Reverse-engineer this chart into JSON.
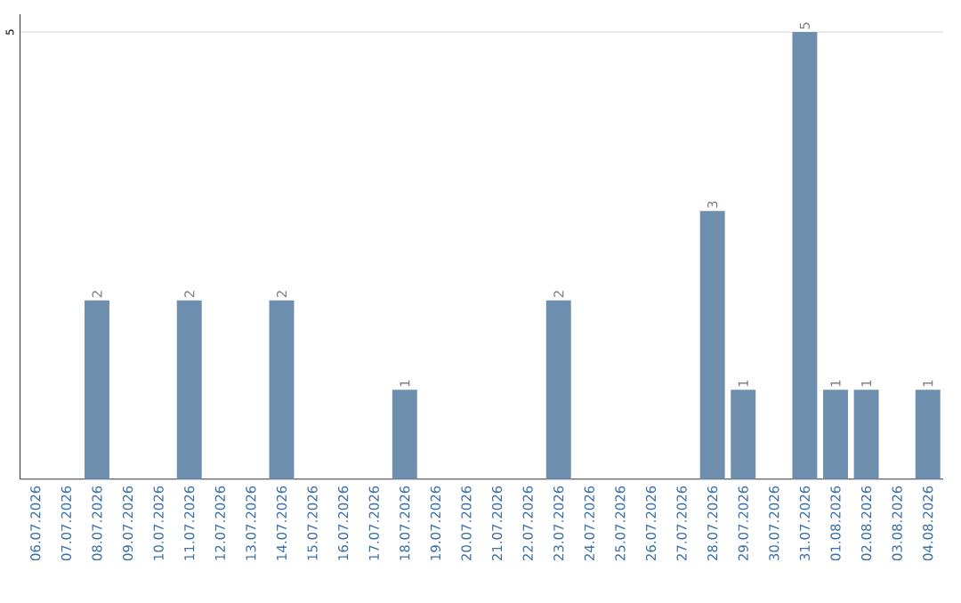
{
  "chart_data": {
    "type": "bar",
    "categories": [
      "06.07.2026",
      "07.07.2026",
      "08.07.2026",
      "09.07.2026",
      "10.07.2026",
      "11.07.2026",
      "12.07.2026",
      "13.07.2026",
      "14.07.2026",
      "15.07.2026",
      "16.07.2026",
      "17.07.2026",
      "18.07.2026",
      "19.07.2026",
      "20.07.2026",
      "21.07.2026",
      "22.07.2026",
      "23.07.2026",
      "24.07.2026",
      "25.07.2026",
      "26.07.2026",
      "27.07.2026",
      "28.07.2026",
      "29.07.2026",
      "30.07.2026",
      "31.07.2026",
      "01.08.2026",
      "02.08.2026",
      "03.08.2026",
      "04.08.2026"
    ],
    "values": [
      null,
      null,
      2,
      null,
      null,
      2,
      null,
      null,
      2,
      null,
      null,
      null,
      1,
      null,
      null,
      null,
      null,
      2,
      null,
      null,
      null,
      null,
      3,
      1,
      null,
      5,
      1,
      1,
      null,
      1
    ],
    "color": "#6d8fad",
    "ylim": [
      0,
      5.2
    ],
    "yticks": [
      5
    ],
    "grid": "y",
    "data_labels": true
  }
}
